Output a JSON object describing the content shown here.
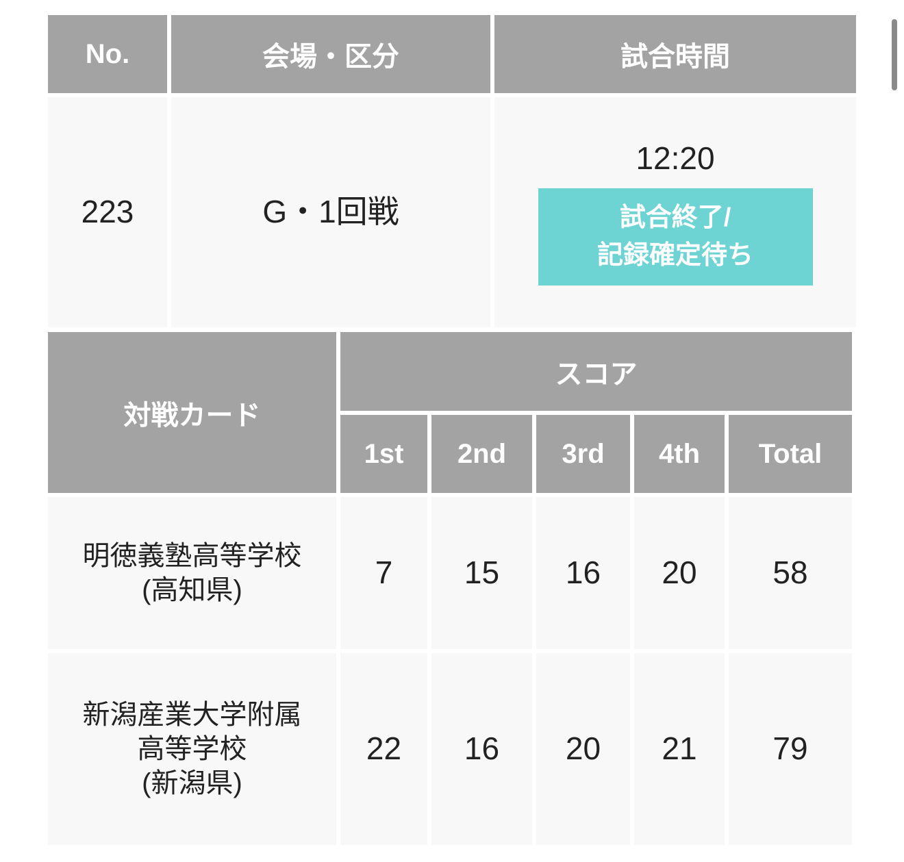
{
  "match_table": {
    "headers": [
      "No.",
      "会場・区分",
      "試合時間"
    ],
    "no": "223",
    "venue_round": "G・1回戦",
    "time": "12:20",
    "status": "試合終了/\n記録確定待ち",
    "status_color": "#6dd3d3"
  },
  "score_table": {
    "card_header": "対戦カード",
    "score_header": "スコア",
    "periods": [
      "1st",
      "2nd",
      "3rd",
      "4th",
      "Total"
    ],
    "rows": [
      {
        "team": "明徳義塾高等学校\n(高知県)",
        "scores": [
          "7",
          "15",
          "16",
          "20",
          "58"
        ]
      },
      {
        "team": "新潟産業大学附属\n高等学校\n(新潟県)",
        "scores": [
          "22",
          "16",
          "20",
          "21",
          "79"
        ]
      }
    ]
  },
  "colors": {
    "header_bg": "#a3a3a3",
    "cell_bg": "#f8f8f8"
  }
}
